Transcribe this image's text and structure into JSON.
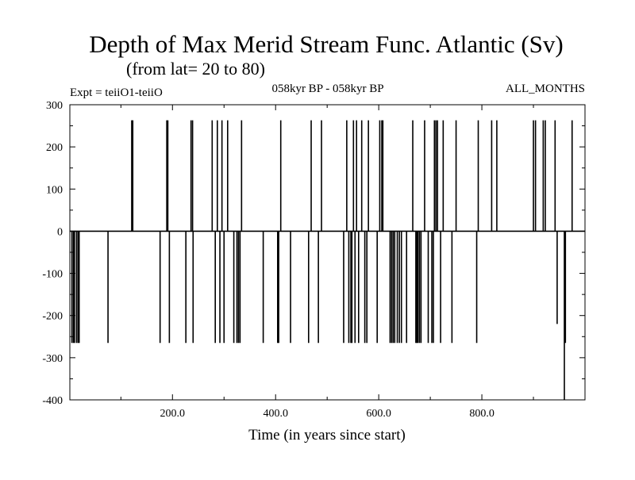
{
  "chart_data": {
    "type": "line",
    "title": "Depth of Max Merid Stream Func. Atlantic (Sv)",
    "subtitle": "(from lat= 20 to 80)",
    "left_label": "Expt = teiiO1-teiiO",
    "center_label": "058kyr BP - 058kyr BP",
    "right_label": "ALL_MONTHS",
    "xlabel": "Time (in years since start)",
    "ylabel": "",
    "xlim": [
      1,
      1000
    ],
    "ylim": [
      -400,
      300
    ],
    "x_ticks": [
      200,
      400,
      600,
      800
    ],
    "x_tick_labels": [
      "200.0",
      "400.0",
      "600.0",
      "800.0"
    ],
    "y_ticks": [
      300,
      200,
      100,
      0,
      -100,
      -200,
      -300,
      -400
    ],
    "y_tick_labels": [
      "300",
      "200",
      "100",
      "0",
      "-100",
      "-200",
      "-300",
      "-400"
    ],
    "grid": false,
    "series": [
      {
        "values": [
          [
            5,
            -265
          ],
          [
            8,
            -265
          ],
          [
            10,
            -265
          ],
          [
            14,
            -265
          ],
          [
            17,
            -265
          ],
          [
            19,
            -265
          ],
          [
            75,
            -265
          ],
          [
            121,
            263
          ],
          [
            123,
            263
          ],
          [
            176,
            -265
          ],
          [
            189,
            263
          ],
          [
            191,
            263
          ],
          [
            194,
            -265
          ],
          [
            226,
            -265
          ],
          [
            236,
            263
          ],
          [
            239,
            263
          ],
          [
            240,
            -265
          ],
          [
            277,
            263
          ],
          [
            283,
            -265
          ],
          [
            287,
            263
          ],
          [
            292,
            -265
          ],
          [
            296,
            263
          ],
          [
            300,
            -265
          ],
          [
            307,
            263
          ],
          [
            319,
            -265
          ],
          [
            325,
            -265
          ],
          [
            328,
            -265
          ],
          [
            331,
            -265
          ],
          [
            334,
            263
          ],
          [
            376,
            -265
          ],
          [
            404,
            -265
          ],
          [
            406,
            -265
          ],
          [
            410,
            263
          ],
          [
            429,
            -265
          ],
          [
            464,
            -265
          ],
          [
            469,
            263
          ],
          [
            483,
            -265
          ],
          [
            489,
            263
          ],
          [
            532,
            -265
          ],
          [
            538,
            263
          ],
          [
            542,
            -265
          ],
          [
            546,
            -265
          ],
          [
            548,
            -265
          ],
          [
            551,
            263
          ],
          [
            554,
            -265
          ],
          [
            557,
            263
          ],
          [
            561,
            -265
          ],
          [
            567,
            263
          ],
          [
            573,
            -265
          ],
          [
            577,
            -265
          ],
          [
            580,
            263
          ],
          [
            597,
            -265
          ],
          [
            602,
            263
          ],
          [
            606,
            263
          ],
          [
            608,
            263
          ],
          [
            622,
            -265
          ],
          [
            625,
            -265
          ],
          [
            628,
            -265
          ],
          [
            631,
            -265
          ],
          [
            636,
            -265
          ],
          [
            640,
            -265
          ],
          [
            644,
            -265
          ],
          [
            654,
            -265
          ],
          [
            666,
            263
          ],
          [
            672,
            -265
          ],
          [
            674,
            -265
          ],
          [
            676,
            -265
          ],
          [
            679,
            -265
          ],
          [
            682,
            -265
          ],
          [
            689,
            263
          ],
          [
            696,
            -265
          ],
          [
            703,
            -265
          ],
          [
            706,
            -265
          ],
          [
            708,
            263
          ],
          [
            711,
            263
          ],
          [
            714,
            263
          ],
          [
            720,
            -265
          ],
          [
            725,
            263
          ],
          [
            742,
            -265
          ],
          [
            750,
            263
          ],
          [
            790,
            -265
          ],
          [
            793,
            263
          ],
          [
            819,
            263
          ],
          [
            829,
            263
          ],
          [
            900,
            263
          ],
          [
            904,
            263
          ],
          [
            919,
            263
          ],
          [
            923,
            263
          ],
          [
            942,
            263
          ],
          [
            946,
            -220
          ],
          [
            960,
            -400
          ],
          [
            962,
            -265
          ],
          [
            975,
            263
          ]
        ]
      }
    ]
  }
}
